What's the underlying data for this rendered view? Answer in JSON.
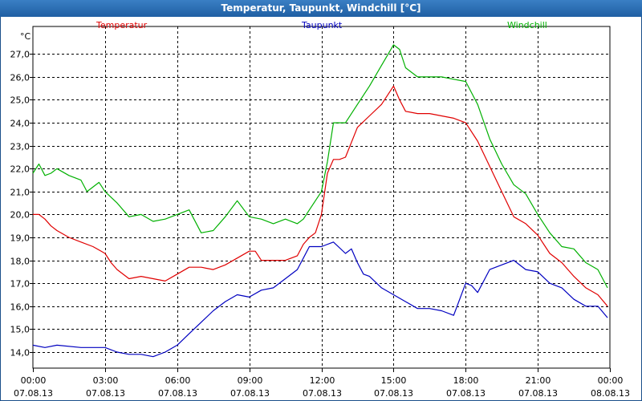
{
  "window": {
    "title": "Temperatur, Taupunkt, Windchill [°C]"
  },
  "chart_data": {
    "type": "line",
    "title": "Temperatur, Taupunkt, Windchill [°C]",
    "ylabel": "°C",
    "ylim": [
      13.3,
      28.2
    ],
    "xlim": [
      0,
      24
    ],
    "grid": true,
    "y_ticks": [
      "14,0",
      "15,0",
      "16,0",
      "17,0",
      "18,0",
      "19,0",
      "20,0",
      "21,0",
      "22,0",
      "23,0",
      "24,0",
      "25,0",
      "26,0",
      "27,0"
    ],
    "x_ticks": [
      {
        "value": 0,
        "time": "00:00",
        "date": "07.08.13"
      },
      {
        "value": 3,
        "time": "03:00",
        "date": "07.08.13"
      },
      {
        "value": 6,
        "time": "06:00",
        "date": "07.08.13"
      },
      {
        "value": 9,
        "time": "09:00",
        "date": "07.08.13"
      },
      {
        "value": 12,
        "time": "12:00",
        "date": "07.08.13"
      },
      {
        "value": 15,
        "time": "15:00",
        "date": "07.08.13"
      },
      {
        "value": 18,
        "time": "18:00",
        "date": "07.08.13"
      },
      {
        "value": 21,
        "time": "21:00",
        "date": "07.08.13"
      },
      {
        "value": 24,
        "time": "00:00",
        "date": "08.08.13"
      }
    ],
    "series": [
      {
        "name": "Temperatur",
        "color": "#e00000",
        "x": [
          0,
          0.25,
          0.5,
          0.75,
          1,
          1.5,
          2,
          2.5,
          3,
          3.25,
          3.5,
          4,
          4.5,
          5,
          5.5,
          6,
          6.5,
          7,
          7.5,
          8,
          8.5,
          9,
          9.25,
          9.5,
          9.75,
          10,
          10.5,
          11,
          11.25,
          11.5,
          11.75,
          12,
          12.25,
          12.5,
          12.75,
          13,
          13.5,
          14,
          14.5,
          15,
          15.25,
          15.5,
          16,
          16.5,
          17,
          17.5,
          18,
          18.5,
          19,
          19.5,
          20,
          20.5,
          21,
          21.5,
          22,
          22.5,
          23,
          23.5,
          23.9
        ],
        "y": [
          20.0,
          20.0,
          19.8,
          19.5,
          19.3,
          19.0,
          18.8,
          18.6,
          18.3,
          17.9,
          17.6,
          17.2,
          17.3,
          17.2,
          17.1,
          17.4,
          17.7,
          17.7,
          17.6,
          17.8,
          18.1,
          18.4,
          18.4,
          18.0,
          18.0,
          18.0,
          18.0,
          18.2,
          18.7,
          19.0,
          19.2,
          20.0,
          21.8,
          22.4,
          22.4,
          22.5,
          23.8,
          24.3,
          24.8,
          25.6,
          25.0,
          24.5,
          24.4,
          24.4,
          24.3,
          24.2,
          24.0,
          23.2,
          22.1,
          21.0,
          19.9,
          19.6,
          19.1,
          18.3,
          17.9,
          17.3,
          16.8,
          16.5,
          16.0
        ]
      },
      {
        "name": "Taupunkt",
        "color": "#0000c0",
        "x": [
          0,
          0.5,
          1,
          2,
          3,
          3.5,
          4,
          4.5,
          5,
          5.5,
          6,
          6.5,
          7,
          7.5,
          8,
          8.5,
          9,
          9.5,
          10,
          10.5,
          11,
          11.5,
          12,
          12.5,
          13,
          13.25,
          13.5,
          13.75,
          14,
          14.5,
          15,
          15.5,
          16,
          16.5,
          17,
          17.5,
          18,
          18.25,
          18.5,
          19,
          19.5,
          20,
          20.5,
          21,
          21.5,
          22,
          22.5,
          23,
          23.5,
          23.9
        ],
        "y": [
          14.3,
          14.2,
          14.3,
          14.2,
          14.2,
          14.0,
          13.9,
          13.9,
          13.8,
          14.0,
          14.3,
          14.8,
          15.3,
          15.8,
          16.2,
          16.5,
          16.4,
          16.7,
          16.8,
          17.2,
          17.6,
          18.6,
          18.6,
          18.8,
          18.3,
          18.5,
          17.9,
          17.4,
          17.3,
          16.8,
          16.5,
          16.2,
          15.9,
          15.9,
          15.8,
          15.6,
          17.0,
          16.9,
          16.6,
          17.6,
          17.8,
          18.0,
          17.6,
          17.5,
          17.0,
          16.8,
          16.3,
          16.0,
          16.0,
          15.5
        ]
      },
      {
        "name": "Windchill",
        "color": "#00b000",
        "x": [
          0,
          0.25,
          0.5,
          0.75,
          1,
          1.5,
          2,
          2.25,
          2.5,
          2.75,
          3,
          3.5,
          4,
          4.5,
          5,
          5.5,
          6,
          6.5,
          7,
          7.5,
          8,
          8.5,
          9,
          9.5,
          10,
          10.5,
          11,
          11.25,
          11.5,
          11.75,
          12,
          12.25,
          12.5,
          12.75,
          13,
          13.5,
          14,
          14.5,
          15,
          15.25,
          15.5,
          16,
          16.5,
          17,
          17.5,
          18,
          18.5,
          19,
          19.5,
          20,
          20.5,
          21,
          21.5,
          22,
          22.5,
          23,
          23.5,
          23.9
        ],
        "y": [
          21.8,
          22.2,
          21.7,
          21.8,
          22.0,
          21.7,
          21.5,
          21.0,
          21.2,
          21.4,
          21.0,
          20.5,
          19.9,
          20.0,
          19.7,
          19.8,
          20.0,
          20.2,
          19.2,
          19.3,
          19.9,
          20.6,
          19.9,
          19.8,
          19.6,
          19.8,
          19.6,
          19.8,
          20.2,
          20.6,
          21.0,
          22.3,
          24.0,
          24.0,
          24.0,
          24.8,
          25.6,
          26.5,
          27.4,
          27.2,
          26.4,
          26.0,
          26.0,
          26.0,
          25.9,
          25.8,
          24.8,
          23.3,
          22.2,
          21.3,
          20.9,
          20.0,
          19.2,
          18.6,
          18.5,
          17.9,
          17.6,
          16.8
        ]
      }
    ]
  }
}
